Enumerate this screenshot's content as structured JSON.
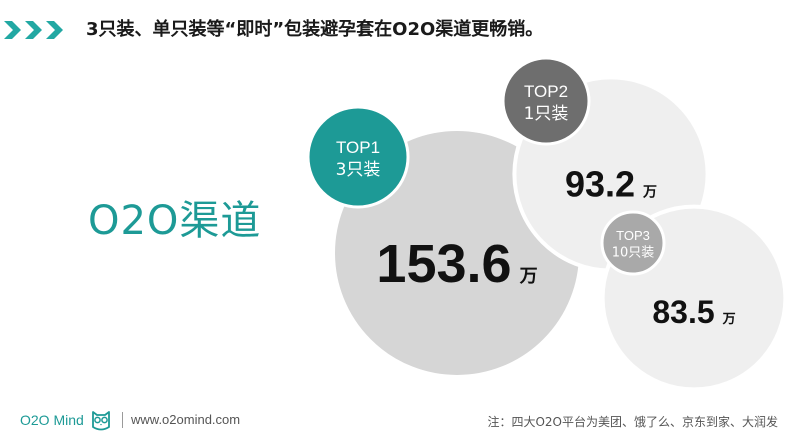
{
  "header": {
    "headline": "3只装、单只装等“即时”包装避孕套在O2O渠道更畅销。",
    "chevron_icon": "triple-chevron-right-icon",
    "chevron_color": "#22a8a3"
  },
  "channel_label": "O2O渠道",
  "chart_data": {
    "type": "bubble",
    "categories": [
      "3只装",
      "1只装",
      "10只装"
    ],
    "ranks": [
      "TOP1",
      "TOP2",
      "TOP3"
    ],
    "values": [
      153.6,
      93.2,
      83.5
    ],
    "value_labels": [
      "153.6",
      "93.2",
      "83.5"
    ],
    "unit": "万",
    "title": "",
    "colors": {
      "accent": "#1d9a96",
      "rank_badge_dark": "#6e6e6e",
      "rank_badge_light": "#a9a9a9",
      "bubble_large": "#d6d6d6",
      "bubble_small": "#efefef"
    }
  },
  "footer": {
    "logo_text": "O2O Mind",
    "logo_icon": "owl-icon",
    "website": "www.o2omind.com",
    "note": "注：四大O2O平台为美团、饿了么、京东到家、大润发"
  }
}
